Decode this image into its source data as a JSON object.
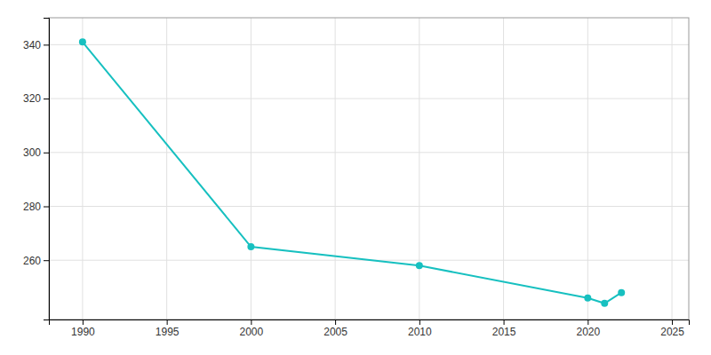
{
  "chart_data": {
    "type": "line",
    "x": [
      1990,
      2000,
      2010,
      2020,
      2021,
      2022
    ],
    "values": [
      341,
      265,
      258,
      246,
      244,
      248
    ],
    "color": "#17c0c0",
    "marker": "circle",
    "xlim": [
      1988,
      2026
    ],
    "ylim": [
      238,
      350
    ],
    "xticks": [
      1990,
      1995,
      2000,
      2005,
      2010,
      2015,
      2020,
      2025
    ],
    "yticks": [
      260,
      280,
      300,
      320,
      340
    ],
    "grid": true
  }
}
